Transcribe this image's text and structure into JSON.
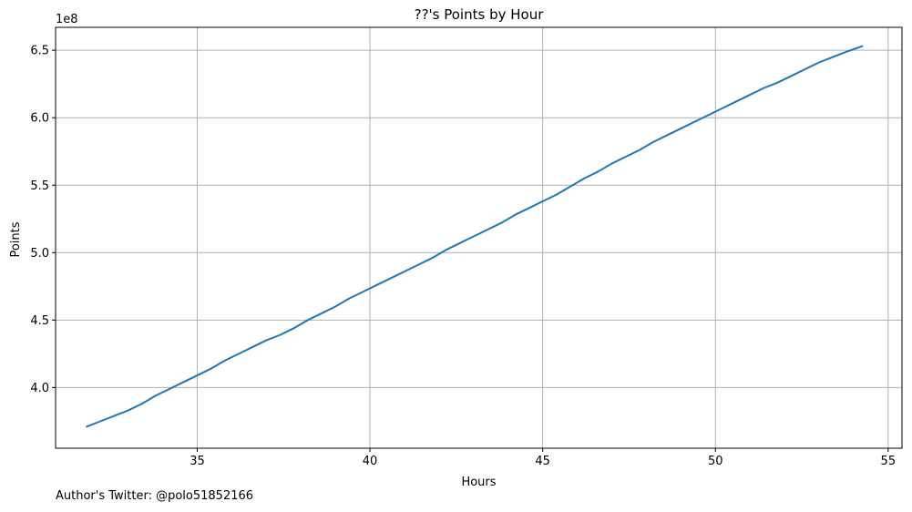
{
  "chart_data": {
    "type": "line",
    "title": "??'s Points by Hour",
    "xlabel": "Hours",
    "ylabel": "Points",
    "y_multiplier_label": "1e8",
    "xlim": [
      30.9,
      55.4
    ],
    "ylim": [
      3.55,
      6.67
    ],
    "x_ticks": [
      35,
      40,
      45,
      50,
      55
    ],
    "y_ticks": [
      4.0,
      4.5,
      5.0,
      5.5,
      6.0,
      6.5
    ],
    "y_tick_labels": [
      "4.0",
      "4.5",
      "5.0",
      "5.5",
      "6.0",
      "6.5"
    ],
    "grid": true,
    "line_color": "#1f77b4",
    "series": [
      {
        "x": [
          31.8,
          32.2,
          32.6,
          33.0,
          33.4,
          33.8,
          34.2,
          34.6,
          35.0,
          35.4,
          35.8,
          36.2,
          36.6,
          37.0,
          37.4,
          37.8,
          38.2,
          38.6,
          39.0,
          39.4,
          39.8,
          40.2,
          40.6,
          41.0,
          41.4,
          41.8,
          42.2,
          42.6,
          43.0,
          43.4,
          43.8,
          44.2,
          44.6,
          45.0,
          45.4,
          45.8,
          46.2,
          46.6,
          47.0,
          47.4,
          47.8,
          48.2,
          48.6,
          49.0,
          49.4,
          49.8,
          50.2,
          50.6,
          51.0,
          51.4,
          51.8,
          52.2,
          52.6,
          53.0,
          53.4,
          53.8,
          54.25
        ],
        "y": [
          3.71,
          3.75,
          3.79,
          3.83,
          3.88,
          3.94,
          3.99,
          4.04,
          4.09,
          4.14,
          4.2,
          4.25,
          4.3,
          4.35,
          4.39,
          4.44,
          4.5,
          4.55,
          4.6,
          4.66,
          4.71,
          4.76,
          4.81,
          4.86,
          4.91,
          4.96,
          5.02,
          5.07,
          5.12,
          5.17,
          5.22,
          5.28,
          5.33,
          5.38,
          5.43,
          5.49,
          5.55,
          5.6,
          5.66,
          5.71,
          5.76,
          5.82,
          5.87,
          5.92,
          5.97,
          6.02,
          6.07,
          6.12,
          6.17,
          6.22,
          6.26,
          6.31,
          6.36,
          6.41,
          6.45,
          6.49,
          6.53
        ]
      }
    ]
  },
  "footer": {
    "author": "Author's Twitter: @polo51852166"
  }
}
